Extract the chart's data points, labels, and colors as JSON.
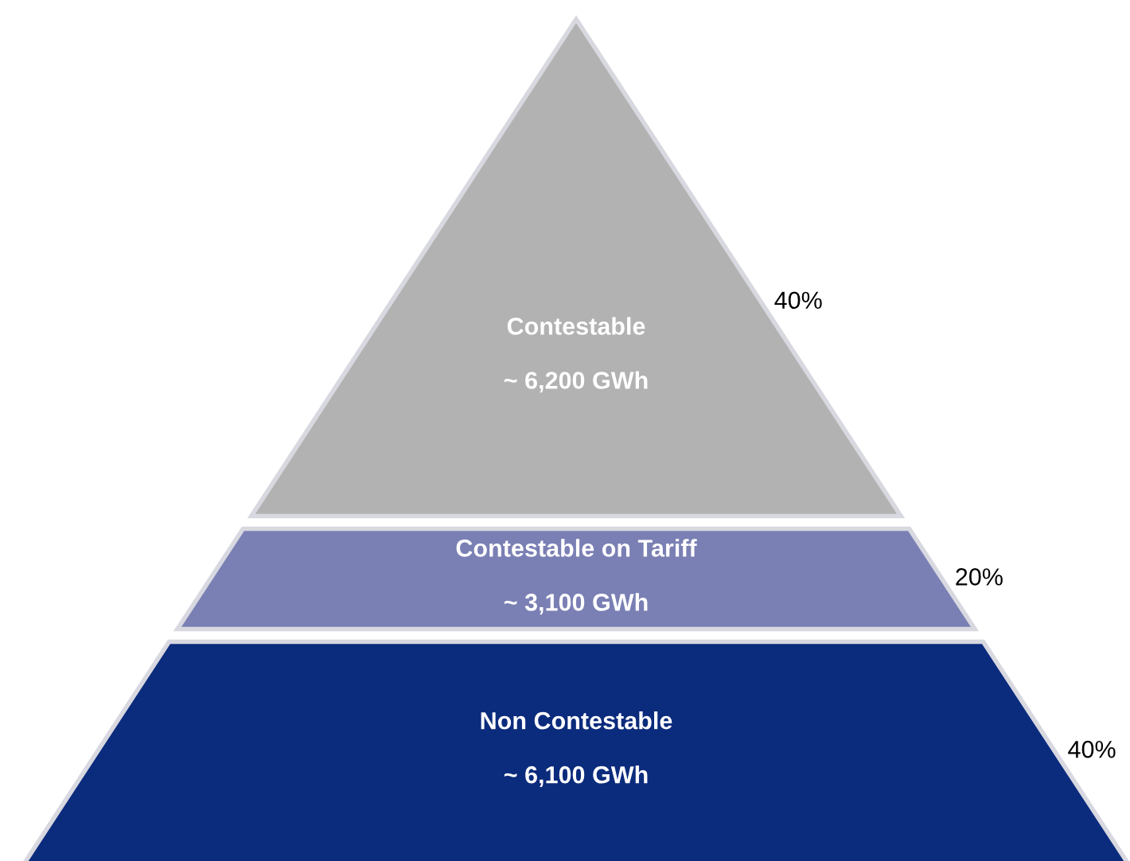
{
  "chart_data": {
    "type": "other",
    "categories": [
      "Contestable",
      "Contestable on Tariff",
      "Non Contestable"
    ],
    "values": [
      40,
      20,
      40
    ],
    "value_labels": [
      "40%",
      "20%",
      "40%"
    ],
    "colors": [
      "#b2b2b2",
      "#7a7fb4",
      "#0b2b7c"
    ],
    "annotations": [
      "~ 6,200 GWh",
      "~ 3,100 GWh",
      "~ 6,100 GWh"
    ]
  }
}
